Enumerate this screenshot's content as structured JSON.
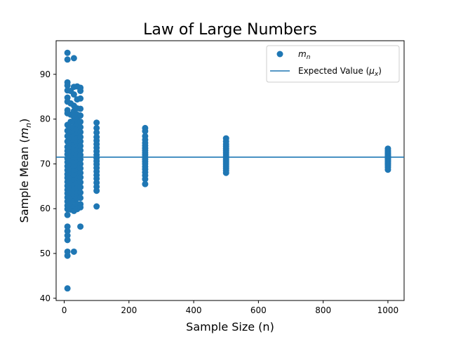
{
  "chart_data": {
    "type": "scatter",
    "title": "Law of Large Numbers",
    "xlabel": "Sample Size (n)",
    "ylabel": "Sample Mean (m_n)",
    "xlim": [
      -25,
      1050
    ],
    "ylim": [
      39.5,
      97.5
    ],
    "xticks": [
      0,
      200,
      400,
      600,
      800,
      1000
    ],
    "yticks": [
      40,
      50,
      60,
      70,
      80,
      90
    ],
    "grid": false,
    "legend_position": "top-right",
    "legend": [
      {
        "label": "m_n",
        "kind": "marker"
      },
      {
        "label": "Expected Value (μx)",
        "kind": "line"
      }
    ],
    "expected_value": 71.5,
    "color": "#1f77b4",
    "series": [
      {
        "name": "m_n",
        "groups": [
          {
            "n": 10,
            "means": [
              94.8,
              93.3,
              88.2,
              87.5,
              86.4,
              84.8,
              83.9,
              82.0,
              81.3,
              78.7,
              77.4,
              76.2,
              75.0,
              73.8,
              72.9,
              72.1,
              71.2,
              70.4,
              69.5,
              68.6,
              67.7,
              66.9,
              66.0,
              65.1,
              64.2,
              63.4,
              62.5,
              61.6,
              60.7,
              59.9,
              58.6,
              56.0,
              55.0,
              54.0,
              53.0,
              50.4,
              49.5,
              42.2
            ]
          },
          {
            "n": 20,
            "means": [
              86.3,
              83.5,
              81.0,
              79.4,
              78.1,
              76.9,
              75.8,
              74.7,
              73.6,
              72.6,
              71.6,
              70.6,
              69.6,
              68.6,
              67.6,
              66.6,
              65.6,
              64.5,
              63.4,
              62.3,
              61.1,
              59.8
            ]
          },
          {
            "n": 30,
            "means": [
              93.6,
              87.2,
              85.5,
              83.0,
              81.8,
              80.5,
              79.3,
              78.2,
              77.1,
              76.1,
              75.1,
              74.1,
              73.1,
              72.1,
              71.2,
              70.3,
              69.3,
              68.4,
              67.4,
              66.4,
              65.3,
              64.2,
              63.0,
              61.7,
              60.3,
              59.5,
              50.4
            ]
          },
          {
            "n": 40,
            "means": [
              87.3,
              84.4,
              82.4,
              81.0,
              79.8,
              78.7,
              77.7,
              76.7,
              75.7,
              74.8,
              73.9,
              73.0,
              72.1,
              71.2,
              70.3,
              69.4,
              68.5,
              67.6,
              66.6,
              65.6,
              64.6,
              63.5,
              62.3,
              61.0,
              59.9
            ]
          },
          {
            "n": 50,
            "means": [
              87.0,
              86.3,
              84.6,
              82.3,
              80.8,
              79.4,
              78.2,
              77.1,
              76.0,
              75.0,
              74.0,
              73.0,
              72.0,
              71.0,
              70.0,
              69.0,
              68.0,
              67.0,
              65.9,
              64.8,
              63.6,
              62.4,
              61.0,
              60.3,
              56.0
            ]
          },
          {
            "n": 100,
            "means": [
              79.2,
              78.0,
              77.0,
              76.0,
              75.2,
              74.4,
              73.6,
              72.8,
              72.0,
              71.3,
              70.6,
              69.9,
              69.1,
              68.3,
              67.5,
              66.7,
              65.8,
              64.9,
              64.0,
              60.5
            ]
          },
          {
            "n": 250,
            "means": [
              78.0,
              77.3,
              76.2,
              75.4,
              74.7,
              74.1,
              73.5,
              73.0,
              72.5,
              72.0,
              71.5,
              71.0,
              70.5,
              70.0,
              69.4,
              68.8,
              68.1,
              67.4,
              66.6,
              65.5
            ]
          },
          {
            "n": 500,
            "means": [
              75.7,
              75.0,
              74.4,
              73.9,
              73.4,
              73.0,
              72.6,
              72.2,
              71.8,
              71.4,
              71.0,
              70.6,
              70.2,
              69.8,
              69.4,
              69.0,
              68.5,
              68.0
            ]
          },
          {
            "n": 1000,
            "means": [
              73.4,
              73.0,
              72.7,
              72.4,
              72.1,
              71.9,
              71.7,
              71.5,
              71.3,
              71.1,
              70.9,
              70.7,
              70.5,
              70.2,
              69.9,
              69.6,
              69.2,
              68.7
            ]
          }
        ]
      }
    ]
  }
}
